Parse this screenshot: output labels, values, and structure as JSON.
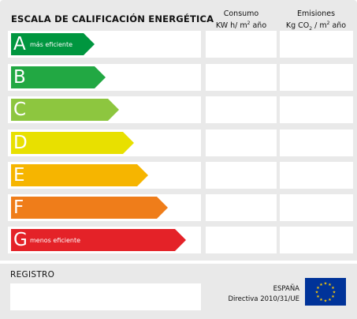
{
  "header": {
    "title": "ESCALA DE CALIFICACIÓN ENERGÉTICA",
    "consumo_line1": "Consumo",
    "consumo_line2_pre": "KW h/ m",
    "consumo_line2_sup": "2",
    "consumo_line2_post": " año",
    "emisiones_line1": "Emisiones",
    "emisiones_line2_pre": "Kg CO",
    "emisiones_line2_sub": "2",
    "emisiones_line2_mid": " / m",
    "emisiones_line2_sup": "2",
    "emisiones_line2_post": " año"
  },
  "ratings": [
    {
      "letter": "A",
      "note": "más eficiente",
      "color": "#00963f"
    },
    {
      "letter": "B",
      "note": "",
      "color": "#22a843"
    },
    {
      "letter": "C",
      "note": "",
      "color": "#8dc63f"
    },
    {
      "letter": "D",
      "note": "",
      "color": "#e8e000"
    },
    {
      "letter": "E",
      "note": "",
      "color": "#f6b500"
    },
    {
      "letter": "F",
      "note": "",
      "color": "#ef7d1a"
    },
    {
      "letter": "G",
      "note": "menos eficiente",
      "color": "#e42228"
    }
  ],
  "footer": {
    "registro_label": "REGISTRO",
    "country": "ESPAÑA",
    "directive": "Directiva 2010/31/UE"
  }
}
